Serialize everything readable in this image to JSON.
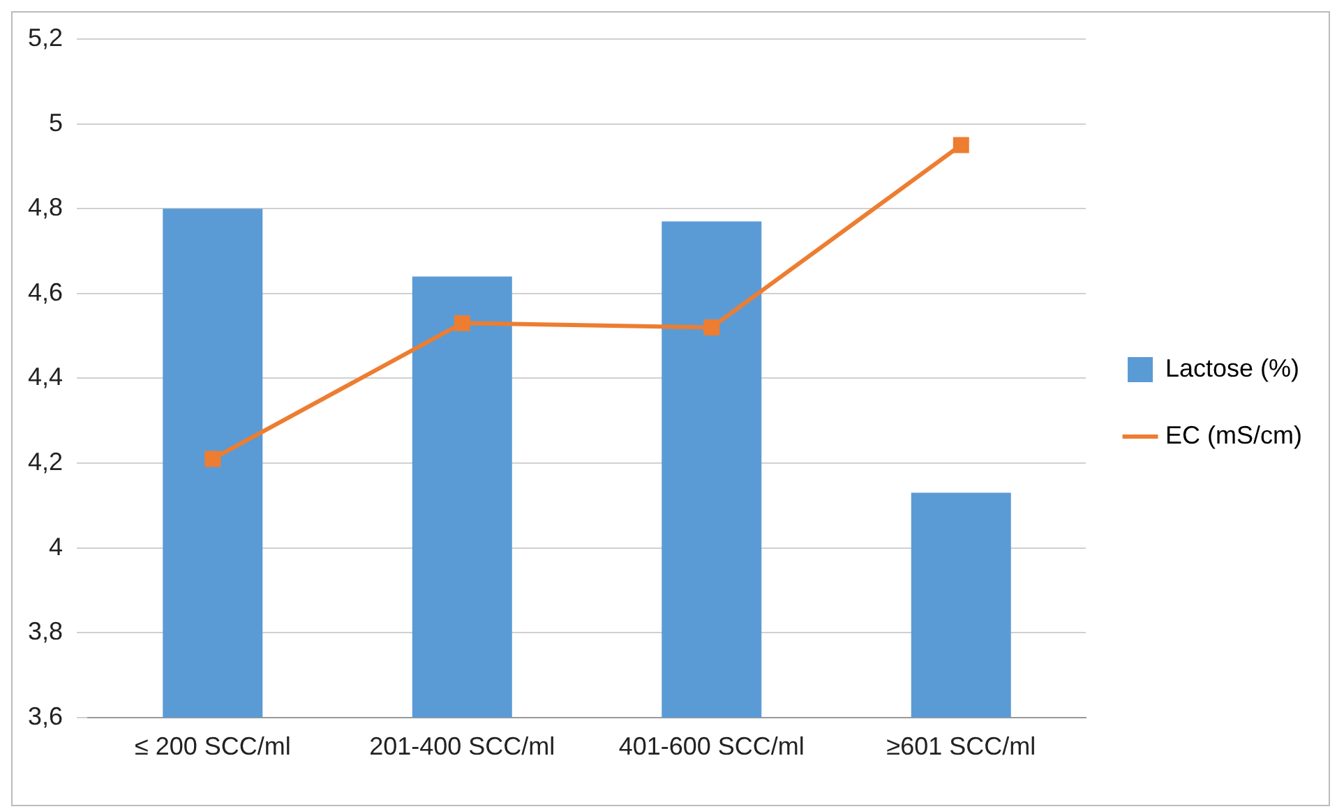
{
  "chart_data": {
    "type": "bar",
    "categories": [
      "≤ 200 SCC/ml",
      "201-400 SCC/ml",
      "401-600 SCC/ml",
      "≥601 SCC/ml"
    ],
    "series": [
      {
        "name": "Lactose (%)",
        "color": "#5b9bd5",
        "values": [
          4.8,
          4.64,
          4.77,
          4.13
        ]
      },
      {
        "name": "EC (mS/cm)",
        "type": "line",
        "color": "#ed7d31",
        "values": [
          4.21,
          4.53,
          4.52,
          4.95
        ]
      }
    ],
    "ylim": [
      3.6,
      5.2
    ],
    "yticks": [
      {
        "value": 3.6,
        "label": "3,6"
      },
      {
        "value": 3.8,
        "label": "3,8"
      },
      {
        "value": 4,
        "label": "4"
      },
      {
        "value": 4.2,
        "label": "4,2"
      },
      {
        "value": 4.4,
        "label": "4,4"
      },
      {
        "value": 4.6,
        "label": "4,6"
      },
      {
        "value": 4.8,
        "label": "4,8"
      },
      {
        "value": 5,
        "label": "5"
      },
      {
        "value": 5.2,
        "label": "5,2"
      }
    ],
    "grid": "y",
    "legend": "right",
    "marker": "square"
  }
}
